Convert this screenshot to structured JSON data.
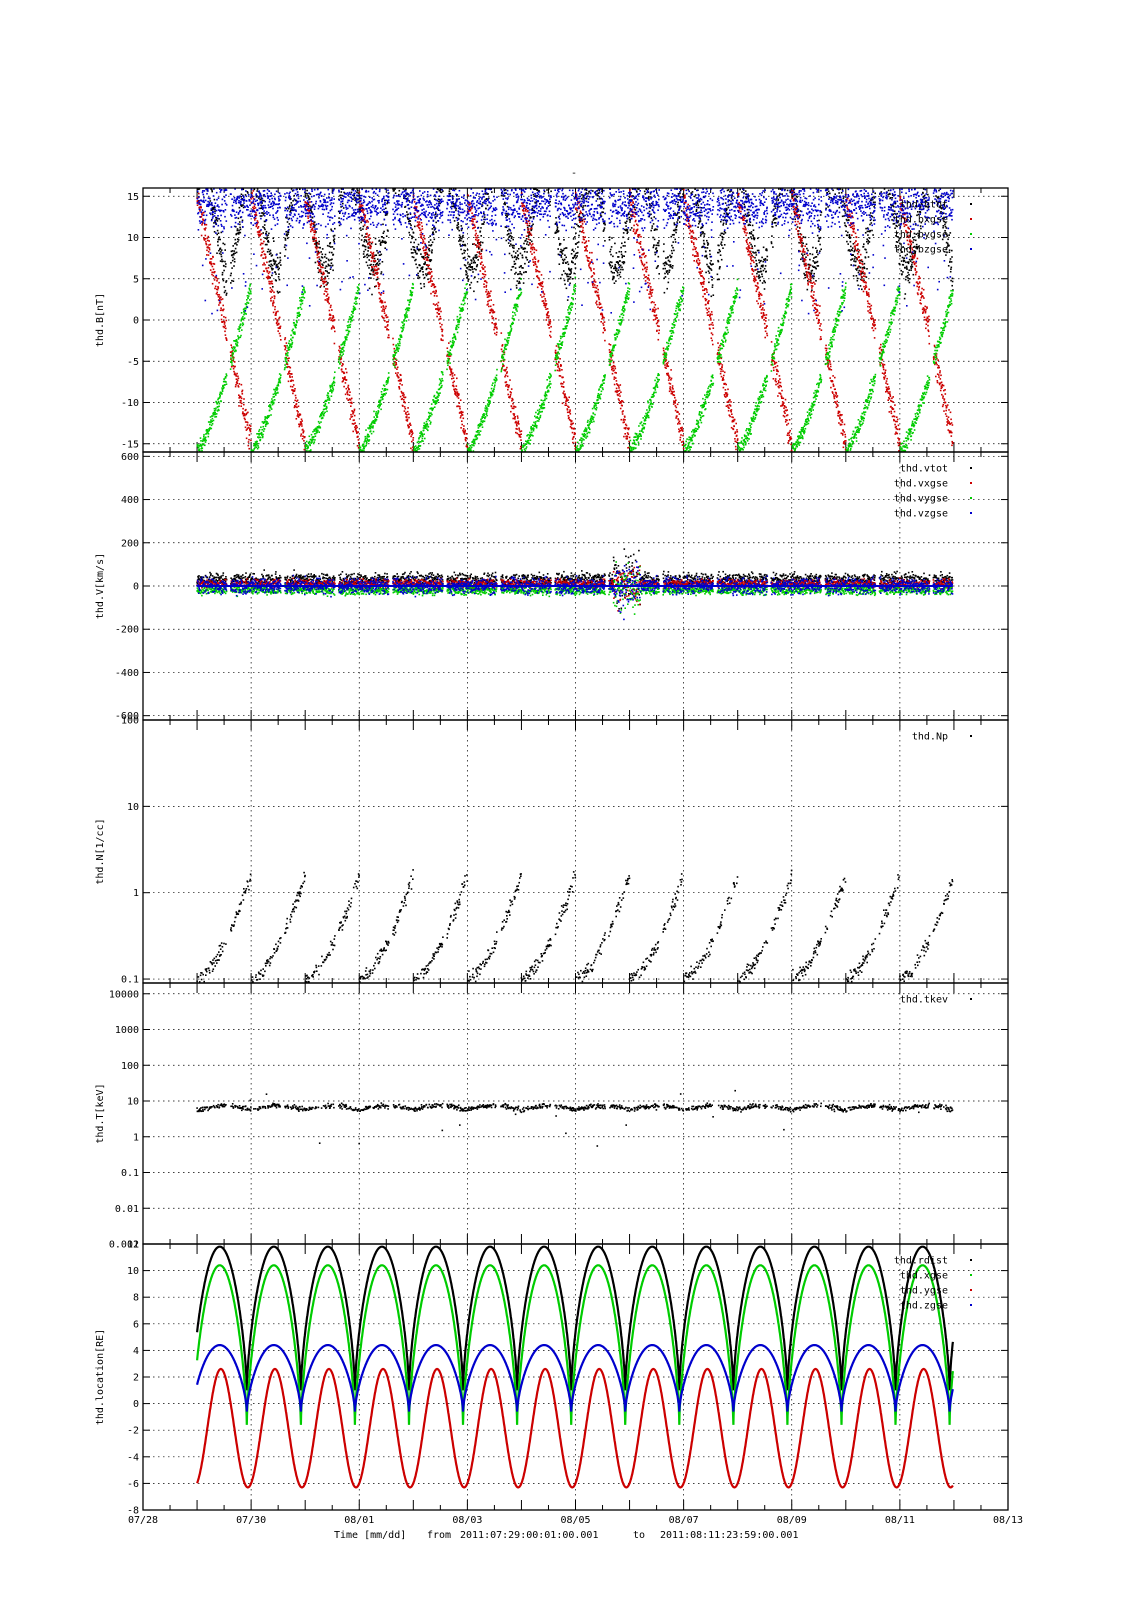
{
  "title_mark": "-",
  "footer": {
    "time_label": "Time [mm/dd]",
    "from_label": "from",
    "from_value": "2011:07:29:00:01:00.001",
    "to_label": "to",
    "to_value": "2011:08:11:23:59:00.001"
  },
  "x_axis": {
    "days_range": [
      0,
      16
    ],
    "tick_labels": [
      "07/28",
      "07/30",
      "08/01",
      "08/03",
      "08/05",
      "08/07",
      "08/09",
      "08/11",
      "08/13"
    ],
    "tick_days": [
      0,
      2,
      4,
      6,
      8,
      10,
      12,
      14,
      16
    ]
  },
  "chart_data": [
    {
      "type": "scatter",
      "ylabel": "thd.B[nT]",
      "ylim": [
        -16,
        16
      ],
      "yticks": [
        -15,
        -10,
        -5,
        0,
        5,
        10,
        15
      ],
      "ytick_labels": [
        "-15",
        "-10",
        "-5",
        "0",
        "5",
        "10",
        "15"
      ],
      "legend_position": "top-right",
      "grid": true,
      "series": [
        {
          "name": "thd.btot",
          "color": "#000000"
        },
        {
          "name": "thd.bxgse",
          "color": "#cc0000"
        },
        {
          "name": "thd.bygse",
          "color": "#00cc00"
        },
        {
          "name": "thd.bzgse",
          "color": "#0000cc"
        }
      ]
    },
    {
      "type": "scatter",
      "ylabel": "thd.V[km/s]",
      "ylim": [
        -620,
        620
      ],
      "yticks": [
        -600,
        -400,
        -200,
        0,
        200,
        400,
        600
      ],
      "ytick_labels": [
        "-600",
        "-400",
        "-200",
        "0",
        "200",
        "400",
        "600"
      ],
      "legend_position": "top-right",
      "grid": true,
      "series": [
        {
          "name": "thd.vtot",
          "color": "#000000"
        },
        {
          "name": "thd.vxgse",
          "color": "#cc0000"
        },
        {
          "name": "thd.vygse",
          "color": "#00cc00"
        },
        {
          "name": "thd.vzgse",
          "color": "#0000cc"
        }
      ]
    },
    {
      "type": "scatter",
      "ylabel": "thd.N[1/cc]",
      "yscale": "log",
      "ylim": [
        0.09,
        100
      ],
      "yticks": [
        0.1,
        1,
        10,
        100
      ],
      "ytick_labels": [
        "0.1",
        "1",
        "10",
        "100"
      ],
      "legend_position": "top-right",
      "grid": true,
      "series": [
        {
          "name": "thd.Np",
          "color": "#000000"
        }
      ]
    },
    {
      "type": "scatter",
      "ylabel": "thd.T[keV]",
      "yscale": "log",
      "ylim": [
        0.001,
        20000
      ],
      "yticks": [
        0.001,
        0.01,
        0.1,
        1,
        10,
        100,
        1000,
        10000
      ],
      "ytick_labels": [
        "0.001",
        "0.01",
        "0.1",
        "1",
        "10",
        "100",
        "1000",
        "10000"
      ],
      "legend_position": "top-right",
      "grid": true,
      "series": [
        {
          "name": "thd.tkev",
          "color": "#000000"
        }
      ]
    },
    {
      "type": "line",
      "ylabel": "thd.location[RE]",
      "ylim": [
        -8,
        12
      ],
      "yticks": [
        -8,
        -6,
        -4,
        -2,
        0,
        2,
        4,
        6,
        8,
        10,
        12
      ],
      "ytick_labels": [
        "-8",
        "-6",
        "-4",
        "-2",
        "0",
        "2",
        "4",
        "6",
        "8",
        "10",
        "12"
      ],
      "legend_position": "top-right",
      "grid": true,
      "orbit_period_days": 1.0,
      "series": [
        {
          "name": "thd.rdist",
          "color": "#000000",
          "max": 11.8,
          "min": 1.0
        },
        {
          "name": "thd.xgse",
          "color": "#00cc00",
          "max": 10.4,
          "min": -1.6
        },
        {
          "name": "thd.ygse",
          "color": "#cc0000",
          "max": 2.6,
          "min": -6.3
        },
        {
          "name": "thd.zgse",
          "color": "#0000cc",
          "max": 4.4,
          "min": -0.6
        }
      ]
    }
  ]
}
